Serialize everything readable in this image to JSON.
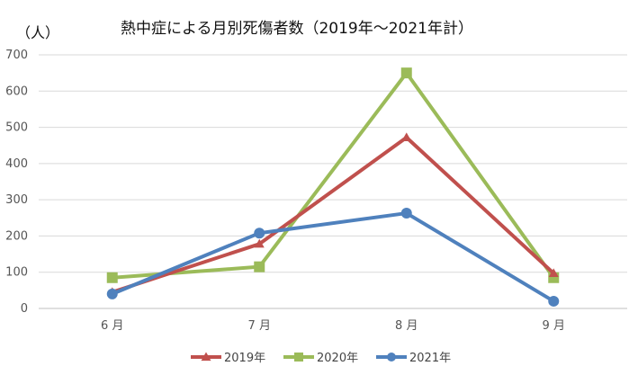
{
  "chart_data": {
    "type": "line",
    "title": "熱中症による月別死傷者数（2019年〜2021年計）",
    "ylabel": "（人）",
    "xlabel": "",
    "categories": [
      "6 月",
      "7 月",
      "8 月",
      "9 月"
    ],
    "ylim": [
      0,
      700
    ],
    "yticks": [
      0,
      100,
      200,
      300,
      400,
      500,
      600,
      700
    ],
    "grid": true,
    "legend_position": "bottom",
    "series": [
      {
        "name": "2019年",
        "values": [
          45,
          178,
          472,
          97
        ],
        "color": "#c0504d",
        "marker": "triangle"
      },
      {
        "name": "2020年",
        "values": [
          85,
          115,
          650,
          85
        ],
        "color": "#9bbb59",
        "marker": "square"
      },
      {
        "name": "2021年",
        "values": [
          40,
          208,
          263,
          20
        ],
        "color": "#4f81bd",
        "marker": "circle"
      }
    ]
  }
}
